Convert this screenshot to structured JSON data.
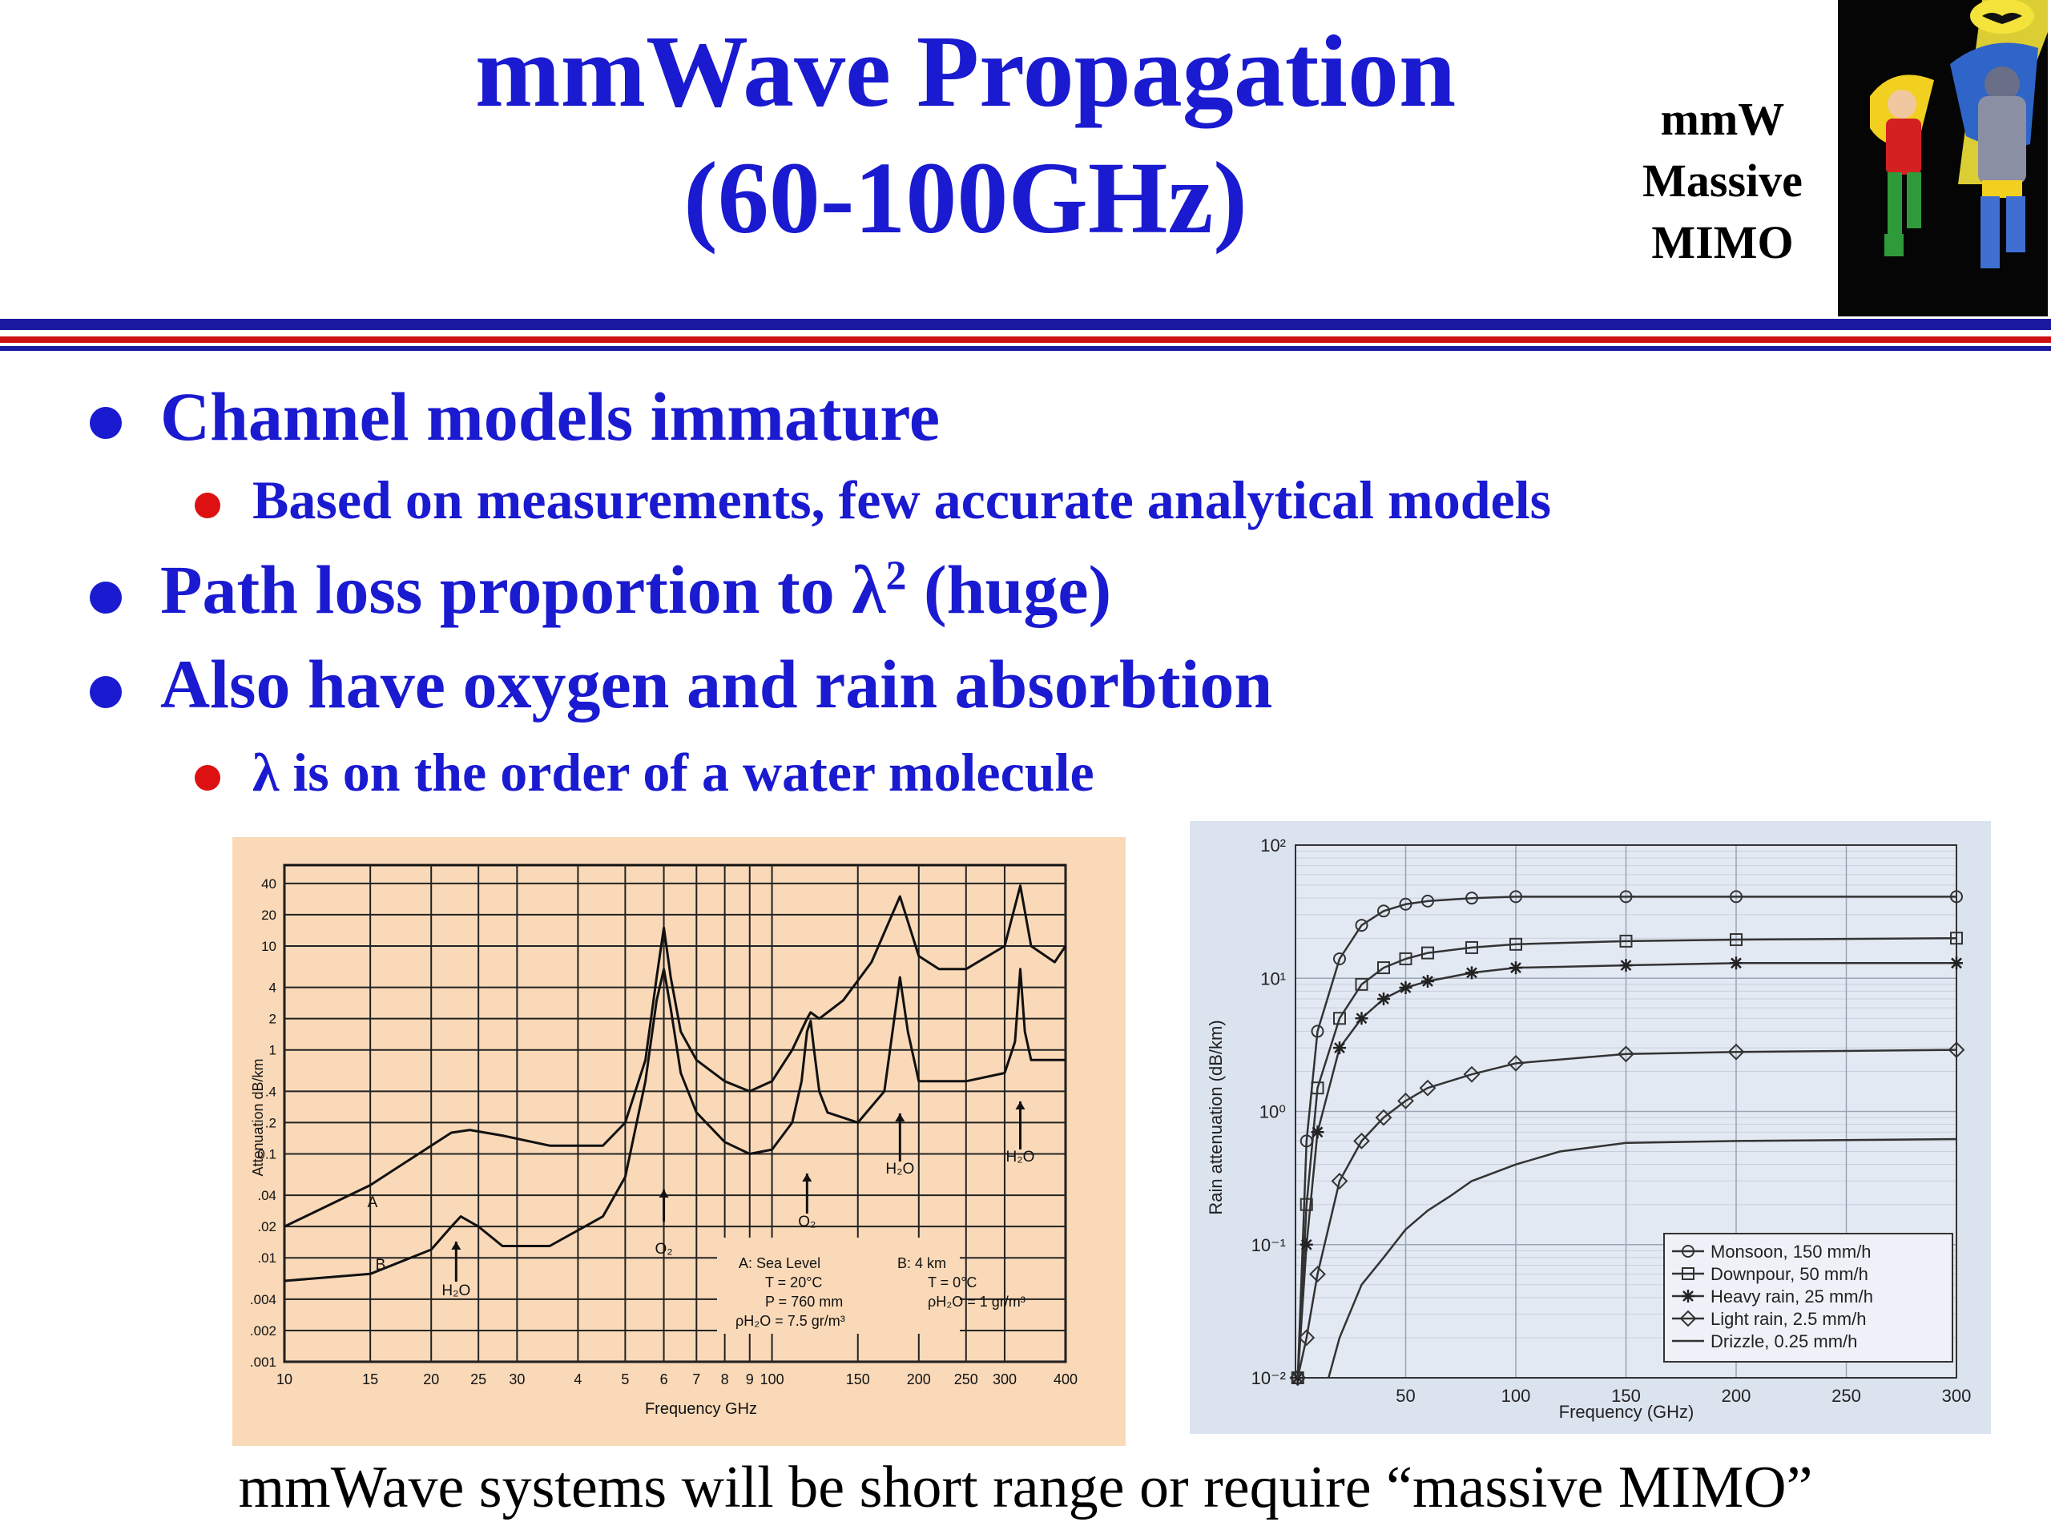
{
  "slide": {
    "title_line1": "mmWave Propagation",
    "title_line2": "(60-100GHz)",
    "brand_line1": "mmW",
    "brand_line2": "Massive",
    "brand_line3": "MIMO",
    "image": "batman-robin-cartoon",
    "bullets": [
      {
        "text": "Channel models immature",
        "sub": [
          "Based on measurements, few accurate analytical models"
        ]
      },
      {
        "text": "Path loss proportion to λ",
        "sup": "2",
        "tail": " (huge)",
        "sub": []
      },
      {
        "text": "Also have oxygen and rain absorbtion",
        "sub": [
          "λ is on the order of a water molecule"
        ]
      }
    ],
    "footer": "mmWave systems will be short range or require “massive MIMO”",
    "colors": {
      "title": "#1a1ad0",
      "subbullet_dot": "#dd1111",
      "rule_blue": "#1a1aa0",
      "rule_red": "#cc1111"
    }
  },
  "chart_data": [
    {
      "type": "line",
      "xlabel": "Frequency GHz",
      "ylabel": "Attenuation dB/km",
      "xscale": "log",
      "yscale": "log",
      "xlim": [
        10,
        400
      ],
      "ylim": [
        0.001,
        60
      ],
      "xticks": [
        "10",
        "15",
        "20",
        "25",
        "30",
        "4",
        "5",
        "6",
        "7",
        "8",
        "9",
        "100",
        "150",
        "200",
        "250",
        "300",
        "400"
      ],
      "yticks": [
        "40",
        "20",
        "10",
        "4",
        "2",
        "1",
        ".4",
        ".2",
        "0.1",
        ".04",
        ".02",
        ".01",
        ".004",
        ".002",
        ".001"
      ],
      "background": "#f9d9b8",
      "series": [
        {
          "name": "A",
          "x": [
            10,
            15,
            20,
            22,
            24,
            28,
            35,
            45,
            50,
            55,
            58,
            60,
            62,
            65,
            70,
            80,
            90,
            100,
            110,
            118,
            120,
            125,
            140,
            160,
            183,
            200,
            220,
            250,
            300,
            323,
            340,
            380,
            400
          ],
          "y": [
            0.02,
            0.05,
            0.12,
            0.16,
            0.17,
            0.15,
            0.12,
            0.12,
            0.2,
            0.8,
            5,
            15,
            5,
            1.5,
            0.8,
            0.5,
            0.4,
            0.5,
            1,
            2,
            2.3,
            2,
            3,
            7,
            30,
            8,
            6,
            6,
            10,
            38,
            10,
            7,
            10
          ]
        },
        {
          "name": "B",
          "x": [
            10,
            15,
            20,
            22,
            23,
            25,
            28,
            35,
            45,
            50,
            55,
            58,
            60,
            62,
            65,
            70,
            80,
            90,
            100,
            110,
            115,
            118,
            120,
            122,
            125,
            130,
            150,
            170,
            183,
            190,
            200,
            250,
            300,
            315,
            323,
            330,
            340,
            400
          ],
          "y": [
            0.006,
            0.007,
            0.012,
            0.02,
            0.025,
            0.02,
            0.013,
            0.013,
            0.025,
            0.06,
            0.5,
            3,
            6,
            2.5,
            0.6,
            0.25,
            0.13,
            0.1,
            0.11,
            0.2,
            0.5,
            1.5,
            1.9,
            1,
            0.4,
            0.25,
            0.2,
            0.4,
            5,
            1.5,
            0.5,
            0.5,
            0.6,
            1.2,
            6,
            1.5,
            0.8,
            0.8
          ]
        }
      ],
      "annotations": [
        "A",
        "B",
        "H₂O",
        "O₂",
        "O₂",
        "H₂O",
        "H₂O"
      ],
      "legend_text": {
        "a1": "A:  Sea Level",
        "a2": "T = 20°C",
        "a3": "P = 760 mm",
        "a4": "ρH₂O = 7.5 gr/m³",
        "b1": "B:  4 km",
        "b2": "T = 0°C",
        "b3": "ρH₂O = 1 gr/m³"
      }
    },
    {
      "type": "line",
      "xlabel": "Frequency (GHz)",
      "ylabel": "Rain attenuation (dB/km)",
      "yscale": "log",
      "xlim": [
        0,
        300
      ],
      "ylim": [
        0.01,
        100
      ],
      "xticks": [
        "50",
        "100",
        "150",
        "200",
        "250",
        "300"
      ],
      "yticks": [
        "10²",
        "10¹",
        "10⁰",
        "10⁻¹",
        "10⁻²"
      ],
      "background": "#dbe3ef",
      "legend_position": "bottom-right",
      "series": [
        {
          "name": "Monsoon, 150 mm/h",
          "marker": "circle",
          "x": [
            1,
            5,
            10,
            20,
            30,
            40,
            50,
            60,
            80,
            100,
            150,
            200,
            300
          ],
          "y": [
            0.01,
            0.6,
            4,
            14,
            25,
            32,
            36,
            38,
            40,
            41,
            41,
            41,
            41
          ]
        },
        {
          "name": "Downpour, 50 mm/h",
          "marker": "square",
          "x": [
            1,
            5,
            10,
            20,
            30,
            40,
            50,
            60,
            80,
            100,
            150,
            200,
            300
          ],
          "y": [
            0.01,
            0.2,
            1.5,
            5,
            9,
            12,
            14,
            15.5,
            17,
            18,
            19,
            19.5,
            20
          ]
        },
        {
          "name": "Heavy rain, 25 mm/h",
          "marker": "star",
          "x": [
            1,
            5,
            10,
            20,
            30,
            40,
            50,
            60,
            80,
            100,
            150,
            200,
            300
          ],
          "y": [
            0.01,
            0.1,
            0.7,
            3,
            5,
            7,
            8.5,
            9.5,
            11,
            12,
            12.5,
            13,
            13
          ]
        },
        {
          "name": "Light rain, 2.5 mm/h",
          "marker": "diamond",
          "x": [
            1,
            5,
            10,
            20,
            30,
            40,
            50,
            60,
            80,
            100,
            150,
            200,
            300
          ],
          "y": [
            0.01,
            0.02,
            0.06,
            0.3,
            0.6,
            0.9,
            1.2,
            1.5,
            1.9,
            2.3,
            2.7,
            2.8,
            2.9
          ]
        },
        {
          "name": "Drizzle, 0.25 mm/h",
          "marker": "none",
          "x": [
            15,
            20,
            30,
            40,
            50,
            60,
            70,
            80,
            100,
            120,
            150,
            200,
            300
          ],
          "y": [
            0.01,
            0.02,
            0.05,
            0.08,
            0.13,
            0.18,
            0.23,
            0.3,
            0.4,
            0.5,
            0.58,
            0.6,
            0.62
          ]
        }
      ]
    }
  ]
}
